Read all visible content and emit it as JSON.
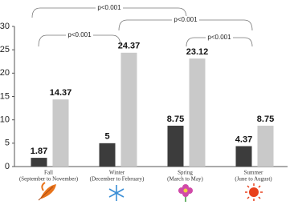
{
  "chart_data": {
    "type": "bar",
    "categories": [
      "Fall",
      "Winter",
      "Spring",
      "Summer"
    ],
    "category_notes": [
      "(September to November)",
      "(December to February)",
      "(March to May)",
      "(June to August)"
    ],
    "series": [
      {
        "color": "#3c3c3c",
        "values": [
          1.87,
          5,
          8.75,
          4.37
        ]
      },
      {
        "color": "#c9c9c9",
        "values": [
          14.37,
          24.37,
          23.12,
          8.75
        ]
      }
    ],
    "ylim": [
      0,
      30
    ],
    "yticks": [
      0,
      5,
      10,
      15,
      20,
      25,
      30
    ],
    "annotations": [
      "p<0.001",
      "p<0.001",
      "p<0.001",
      "p<0.001"
    ]
  }
}
